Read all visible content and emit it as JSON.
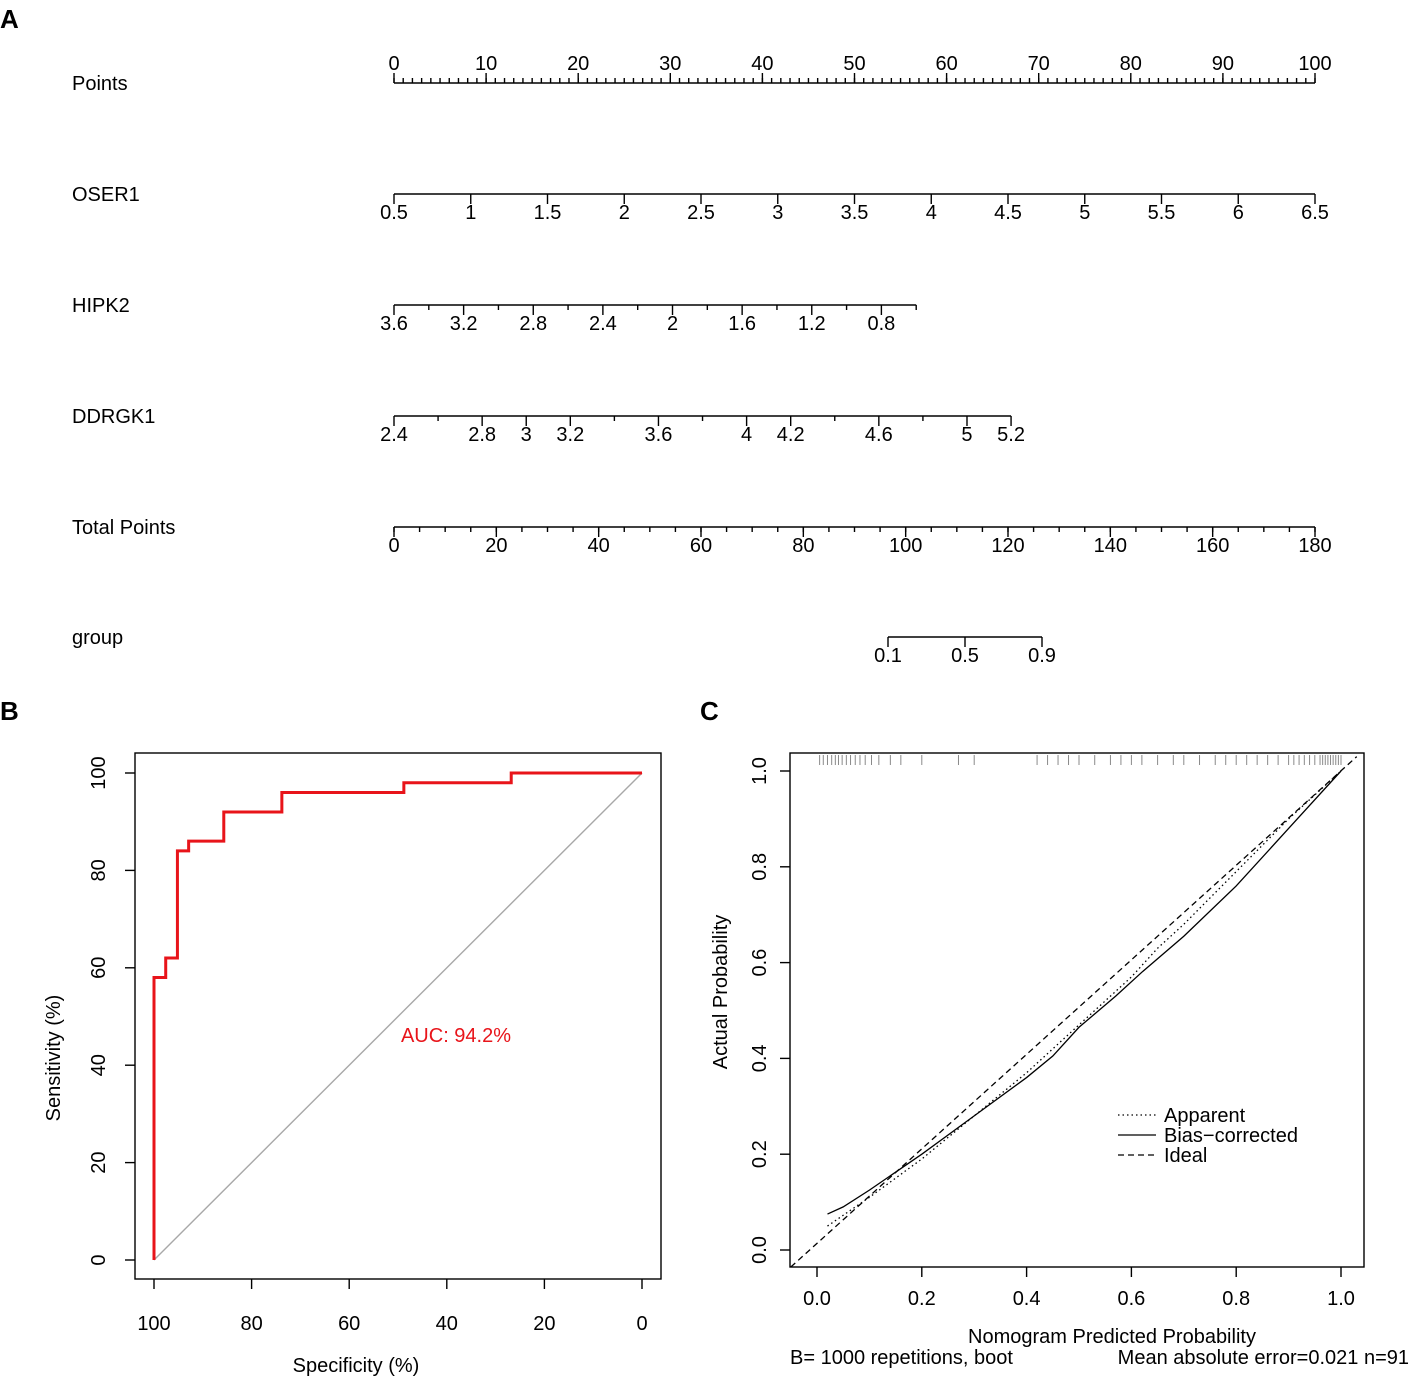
{
  "panels": {
    "a": "A",
    "b": "B",
    "c": "C"
  },
  "chart_data": [
    {
      "type": "nomogram",
      "panel": "A",
      "axes": [
        {
          "name": "Points",
          "min": 0,
          "max": 100,
          "labels": [
            "0",
            "10",
            "20",
            "30",
            "40",
            "50",
            "60",
            "70",
            "80",
            "90",
            "100"
          ],
          "values": [
            0,
            10,
            20,
            30,
            40,
            50,
            60,
            70,
            80,
            90,
            100
          ],
          "minor_step": 1,
          "label_side": "above"
        },
        {
          "name": "OSER1",
          "min": 0.5,
          "max": 6.5,
          "labels": [
            "0.5",
            "1",
            "1.5",
            "2",
            "2.5",
            "3",
            "3.5",
            "4",
            "4.5",
            "5",
            "5.5",
            "6",
            "6.5"
          ],
          "values": [
            0.5,
            1,
            1.5,
            2,
            2.5,
            3,
            3.5,
            4,
            4.5,
            5,
            5.5,
            6,
            6.5
          ],
          "label_side": "below"
        },
        {
          "name": "HIPK2",
          "min": 3.6,
          "max": 0.6,
          "labels": [
            "3.6",
            "3.2",
            "2.8",
            "2.4",
            "2",
            "1.6",
            "1.2",
            "0.8"
          ],
          "values": [
            3.6,
            3.2,
            2.8,
            2.4,
            2,
            1.6,
            1.2,
            0.8
          ],
          "minor_values": [
            3.4,
            3.0,
            2.6,
            2.2,
            1.8,
            1.4,
            1.0,
            0.6
          ],
          "label_side": "below"
        },
        {
          "name": "DDRGK1",
          "min": 2.4,
          "max": 5.2,
          "labels": [
            "2.4",
            "2.8",
            "3",
            "3.2",
            "3.6",
            "4",
            "4.2",
            "4.6",
            "5",
            "5.2"
          ],
          "values": [
            2.4,
            2.8,
            3,
            3.2,
            3.6,
            4,
            4.2,
            4.6,
            5,
            5.2
          ],
          "minor_values": [
            2.6,
            3.4,
            3.8,
            4.4,
            4.8
          ],
          "label_side": "below"
        },
        {
          "name": "Total Points",
          "min": 0,
          "max": 180,
          "labels": [
            "0",
            "20",
            "40",
            "60",
            "80",
            "100",
            "120",
            "140",
            "160",
            "180"
          ],
          "values": [
            0,
            20,
            40,
            60,
            80,
            100,
            120,
            140,
            160,
            180
          ],
          "minor_step": 5,
          "label_side": "below"
        },
        {
          "name": "group",
          "min": 0.1,
          "max": 0.9,
          "labels": [
            "0.1",
            "0.5",
            "0.9"
          ],
          "values": [
            0.1,
            0.5,
            0.9
          ],
          "label_side": "below"
        }
      ]
    },
    {
      "type": "line",
      "panel": "B",
      "xlabel": "Specificity (%)",
      "ylabel": "Sensitivity (%)",
      "xlim": [
        100,
        0
      ],
      "ylim": [
        0,
        100
      ],
      "x_ticks": [
        "100",
        "80",
        "60",
        "40",
        "20",
        "0"
      ],
      "x_tick_values": [
        100,
        80,
        60,
        40,
        20,
        0
      ],
      "y_ticks": [
        "0",
        "20",
        "40",
        "60",
        "80",
        "100"
      ],
      "y_tick_values": [
        0,
        20,
        40,
        60,
        80,
        100
      ],
      "annotation": "AUC: 94.2%",
      "annotation_color": "#e8141a",
      "roc_color": "#e8141a",
      "diagonal_color": "#a8a8a8",
      "roc": {
        "specificity": [
          100,
          100,
          97.6,
          97.6,
          95.2,
          95.2,
          92.9,
          92.9,
          85.7,
          85.7,
          73.8,
          73.8,
          48.8,
          48.8,
          26.8,
          26.8,
          0
        ],
        "sensitivity": [
          0,
          58,
          58,
          62,
          62,
          84,
          84,
          86,
          86,
          92,
          92,
          96,
          96,
          98,
          98,
          100,
          100
        ]
      },
      "diagonal": {
        "specificity": [
          100,
          0
        ],
        "sensitivity": [
          0,
          100
        ]
      }
    },
    {
      "type": "line",
      "panel": "C",
      "xlabel": "Nomogram Predicted Probability",
      "ylabel": "Actual Probability",
      "xlim": [
        -0.05,
        1.03
      ],
      "ylim": [
        -0.035,
        1.04
      ],
      "x_ticks": [
        "0.0",
        "0.2",
        "0.4",
        "0.6",
        "0.8",
        "1.0"
      ],
      "x_tick_values": [
        0,
        0.2,
        0.4,
        0.6,
        0.8,
        1.0
      ],
      "y_ticks": [
        "0.0",
        "0.2",
        "0.4",
        "0.6",
        "0.8",
        "1.0"
      ],
      "y_tick_values": [
        0,
        0.2,
        0.4,
        0.6,
        0.8,
        1.0
      ],
      "legend": [
        "Apparent",
        "Bias−corrected",
        "Ideal"
      ],
      "legend_position": "bottom-right",
      "footer_left": "B= 1000 repetitions, boot",
      "footer_right": "Mean absolute error=0.021 n=91",
      "series": [
        {
          "name": "Apparent",
          "style": "dotted",
          "x": [
            0.02,
            0.1,
            0.2,
            0.3,
            0.4,
            0.45,
            0.5,
            0.55,
            0.6,
            0.65,
            0.7,
            0.8,
            0.9,
            1.0
          ],
          "y": [
            0.05,
            0.11,
            0.19,
            0.28,
            0.37,
            0.42,
            0.47,
            0.52,
            0.57,
            0.63,
            0.68,
            0.79,
            0.9,
            1.0
          ]
        },
        {
          "name": "Bias−corrected",
          "style": "solid",
          "x": [
            0.02,
            0.05,
            0.1,
            0.2,
            0.3,
            0.4,
            0.45,
            0.5,
            0.57,
            0.62,
            0.7,
            0.8,
            0.9,
            1.0
          ],
          "y": [
            0.075,
            0.09,
            0.125,
            0.2,
            0.28,
            0.36,
            0.405,
            0.465,
            0.53,
            0.58,
            0.655,
            0.76,
            0.88,
            1.0
          ]
        },
        {
          "name": "Ideal",
          "style": "dashed",
          "x": [
            -0.05,
            1.03
          ],
          "y": [
            -0.05,
            1.03
          ]
        }
      ],
      "rug": [
        0.005,
        0.012,
        0.02,
        0.028,
        0.035,
        0.041,
        0.048,
        0.056,
        0.064,
        0.073,
        0.082,
        0.092,
        0.104,
        0.118,
        0.14,
        0.16,
        0.2,
        0.27,
        0.3,
        0.42,
        0.44,
        0.46,
        0.48,
        0.5,
        0.53,
        0.56,
        0.58,
        0.6,
        0.62,
        0.65,
        0.68,
        0.7,
        0.73,
        0.76,
        0.78,
        0.8,
        0.82,
        0.84,
        0.86,
        0.88,
        0.9,
        0.91,
        0.92,
        0.93,
        0.94,
        0.95,
        0.96,
        0.965,
        0.97,
        0.975,
        0.98,
        0.985,
        0.99,
        0.995,
        1.0
      ]
    }
  ]
}
